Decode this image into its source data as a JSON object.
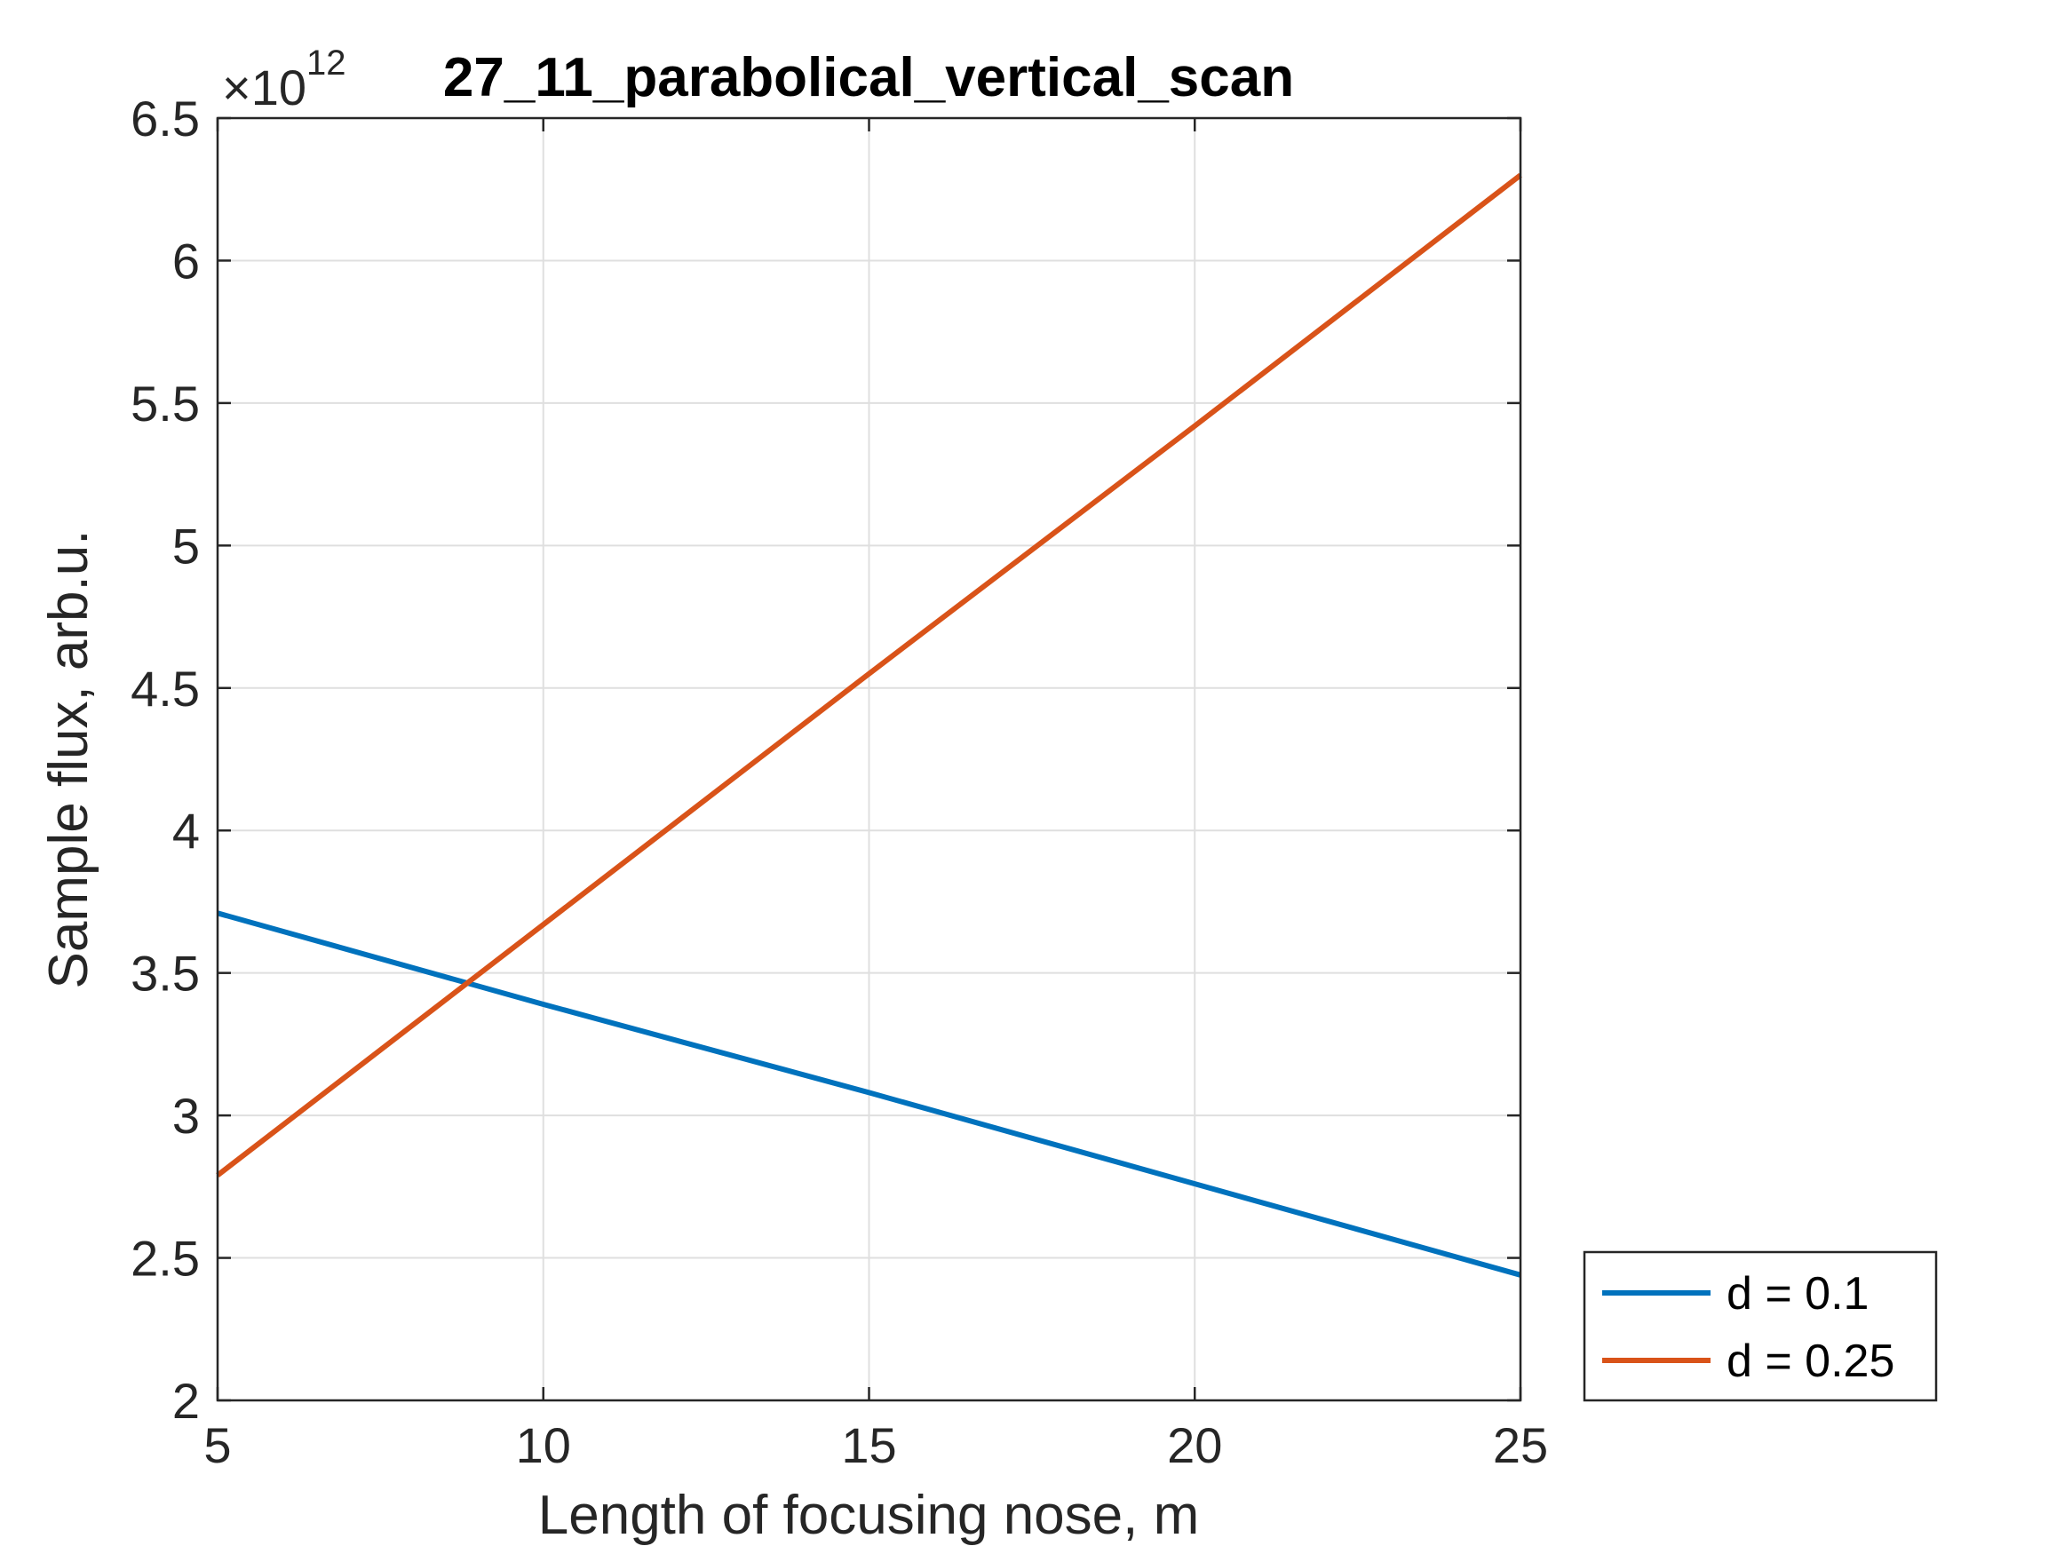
{
  "chart_data": {
    "type": "line",
    "title": "27_11_parabolical_vertical_scan",
    "xlabel": "Length of focusing nose, m",
    "ylabel": "Sample flux, arb.u.",
    "y_multiplier_base": "×10",
    "y_multiplier_exponent": "12",
    "xlim": [
      5,
      25
    ],
    "ylim": [
      2,
      6.5
    ],
    "xticks": [
      5,
      10,
      15,
      20,
      25
    ],
    "yticks": [
      2,
      2.5,
      3,
      3.5,
      4,
      4.5,
      5,
      5.5,
      6,
      6.5
    ],
    "xtick_labels": [
      "5",
      "10",
      "15",
      "20",
      "25"
    ],
    "ytick_labels": [
      "2",
      "2.5",
      "3",
      "3.5",
      "4",
      "4.5",
      "5",
      "5.5",
      "6",
      "6.5"
    ],
    "grid": true,
    "legend_position": "outside-bottom-right",
    "series": [
      {
        "name": "d = 0.1",
        "color": "#0072BD",
        "x": [
          5,
          10,
          15,
          20,
          25
        ],
        "y": [
          3.71,
          3.39,
          3.08,
          2.76,
          2.44
        ]
      },
      {
        "name": "d = 0.25",
        "color": "#D95319",
        "x": [
          5,
          10,
          15,
          20,
          25
        ],
        "y": [
          2.79,
          3.67,
          4.55,
          5.42,
          6.3
        ]
      }
    ]
  }
}
